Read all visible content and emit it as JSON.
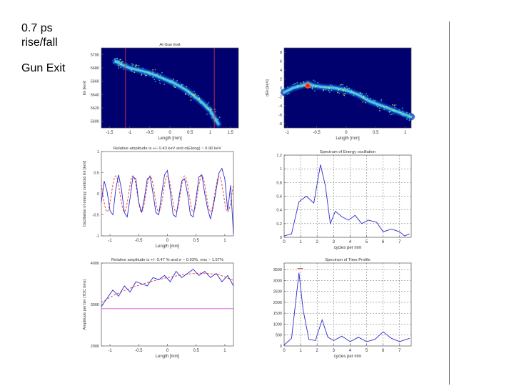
{
  "slide": {
    "heading_line1": "0.7 ps",
    "heading_line2": "rise/fall",
    "subheading": "Gun Exit"
  },
  "colors": {
    "blue": "#2b2bcc",
    "red": "#e23a3a",
    "magenta": "#d34fd3",
    "heatmap_bg": "#00006e",
    "divider": "#777777"
  },
  "chart_data": [
    {
      "type": "heatmap",
      "title": "At Gun Exit",
      "xlabel": "Length [mm]",
      "ylabel": "Ek [keV]",
      "xlim": [
        -1.7,
        1.7
      ],
      "ylim": [
        5590,
        5710
      ],
      "xticks": [
        -1.5,
        -1,
        -0.5,
        0,
        0.5,
        1,
        1.5
      ],
      "xtick_labels": [
        "-1.5",
        "-1",
        "-0.5",
        "0",
        "0.5",
        "1",
        "1.5"
      ],
      "yticks": [
        5600,
        5620,
        5640,
        5660,
        5680,
        5700
      ],
      "ytick_labels": [
        "5600",
        "5620",
        "5640",
        "5660",
        "5680",
        "5700"
      ],
      "vertical_markers": [
        -1.1,
        1.1
      ],
      "ridge": {
        "x": [
          -1.35,
          -1.2,
          -1.0,
          -0.8,
          -0.6,
          -0.4,
          -0.2,
          0,
          0.2,
          0.4,
          0.6,
          0.8,
          1.0,
          1.1,
          1.2
        ],
        "y": [
          5690,
          5685,
          5680,
          5677,
          5674,
          5670,
          5665,
          5660,
          5654,
          5647,
          5638,
          5628,
          5616,
          5606,
          5596
        ]
      }
    },
    {
      "type": "heatmap",
      "title": "",
      "xlabel": "Length [mm]",
      "ylabel": "dEk [keV]",
      "xlim": [
        -1.05,
        1.1
      ],
      "ylim": [
        -9,
        9
      ],
      "xticks": [
        -1,
        -0.5,
        0,
        0.5,
        1
      ],
      "xtick_labels": [
        "-1",
        "-0.5",
        "0",
        "0.5",
        "1"
      ],
      "yticks": [
        -8,
        -6,
        -4,
        -2,
        0,
        2,
        4,
        6,
        8
      ],
      "ytick_labels": [
        "-8",
        "-6",
        "-4",
        "-2",
        "0",
        "2",
        "4",
        "6",
        "8"
      ],
      "ridge": {
        "x": [
          -1.05,
          -0.9,
          -0.75,
          -0.65,
          -0.55,
          -0.4,
          -0.2,
          0,
          0.2,
          0.4,
          0.6,
          0.8,
          1.0,
          1.1
        ],
        "y": [
          -1,
          0,
          0.5,
          1,
          0.5,
          0.2,
          0,
          -0.5,
          -1.5,
          -3,
          -4,
          -5,
          -6,
          -6.5
        ]
      },
      "hotspot": {
        "x": -0.65,
        "y": 0.5
      }
    },
    {
      "type": "line",
      "title": "Relative amplitude is +/- 0.43 keV and σ(Elong) ~ 0.90 keV",
      "xlabel": "Length [mm]",
      "ylabel": "Oscillation of energy centroid Ek [keV]",
      "xlim": [
        -1.15,
        1.15
      ],
      "ylim": [
        -1,
        1
      ],
      "xticks": [
        -1,
        -0.5,
        0,
        0.5,
        1
      ],
      "xtick_labels": [
        "-1",
        "-0.5",
        "0",
        "0.5",
        "1"
      ],
      "yticks": [
        -1,
        -0.5,
        0,
        0.5,
        1
      ],
      "ytick_labels": [
        "-1",
        "-0.5",
        "0",
        "0.5",
        "1"
      ],
      "series": [
        {
          "color": "#2b2bcc",
          "style": "solid",
          "x": [
            -1.15,
            -1.1,
            -1.05,
            -1.0,
            -0.95,
            -0.9,
            -0.85,
            -0.8,
            -0.75,
            -0.7,
            -0.65,
            -0.6,
            -0.55,
            -0.5,
            -0.45,
            -0.4,
            -0.35,
            -0.3,
            -0.25,
            -0.2,
            -0.15,
            -0.1,
            -0.05,
            0,
            0.05,
            0.1,
            0.15,
            0.2,
            0.25,
            0.3,
            0.35,
            0.4,
            0.45,
            0.5,
            0.55,
            0.6,
            0.65,
            0.7,
            0.75,
            0.8,
            0.85,
            0.9,
            0.95,
            1.0,
            1.05,
            1.1,
            1.15
          ],
          "y": [
            -0.2,
            0.3,
            0.05,
            -0.4,
            -0.5,
            0.1,
            0.45,
            0.1,
            -0.45,
            -0.55,
            -0.1,
            0.4,
            0.35,
            -0.2,
            -0.45,
            -0.1,
            0.35,
            0.4,
            0.0,
            -0.45,
            -0.5,
            0.0,
            0.45,
            0.55,
            0.05,
            -0.5,
            -0.55,
            -0.1,
            0.3,
            0.35,
            0.0,
            -0.5,
            -0.55,
            -0.1,
            0.4,
            0.45,
            0.0,
            -0.35,
            -0.6,
            -0.3,
            0.1,
            0.5,
            0.6,
            0.35,
            -0.4,
            0.2,
            -0.95
          ]
        },
        {
          "color": "#e23a3a",
          "style": "dashed",
          "amplitude": 0.43,
          "period": 0.3,
          "x_range": [
            -1.15,
            1.15
          ]
        }
      ]
    },
    {
      "type": "line",
      "title": "Spectrum of Energy oscillation",
      "xlabel": "cycles per mm",
      "ylabel": "",
      "xlim": [
        0,
        7.7
      ],
      "ylim": [
        0,
        1.2
      ],
      "xticks": [
        0,
        1,
        2,
        3,
        4,
        5,
        6,
        7
      ],
      "xtick_labels": [
        "0",
        "1",
        "2",
        "3",
        "4",
        "5",
        "6",
        "7"
      ],
      "yticks": [
        0,
        0.2,
        0.4,
        0.6,
        0.8,
        1.0,
        1.2
      ],
      "ytick_labels": [
        "0",
        "0.2",
        "0.4",
        "0.6",
        "0.8",
        "1",
        "1.2"
      ],
      "grid": "dashed",
      "series": [
        {
          "color": "#2b2bcc",
          "x": [
            0,
            0.45,
            0.9,
            1.35,
            1.8,
            2.2,
            2.5,
            2.8,
            3.1,
            3.5,
            3.9,
            4.3,
            4.7,
            5.1,
            5.6,
            6.0,
            6.5,
            7.0,
            7.3,
            7.6
          ],
          "y": [
            0.02,
            0.05,
            0.52,
            0.6,
            0.5,
            1.06,
            0.75,
            0.2,
            0.38,
            0.3,
            0.25,
            0.32,
            0.2,
            0.25,
            0.22,
            0.08,
            0.12,
            0.08,
            0.02,
            0.05
          ]
        }
      ]
    },
    {
      "type": "line",
      "title": "Relative amplitude is +/- 0.47 % and σ ~ 0.93%, rms ~ 1.57%",
      "xlabel": "Length [mm]",
      "ylabel": "Amplitude per bin (7DC bins)",
      "xlim": [
        -1.15,
        1.15
      ],
      "ylim": [
        2000,
        4000
      ],
      "xticks": [
        -1,
        -0.5,
        0,
        0.5,
        1
      ],
      "xtick_labels": [
        "-1",
        "-0.5",
        "0",
        "0.5",
        "1"
      ],
      "yticks": [
        2000,
        3000,
        4000
      ],
      "ytick_labels": [
        "2000",
        "3000",
        "4000"
      ],
      "series": [
        {
          "color": "#2b2bcc",
          "x": [
            -1.15,
            -1.05,
            -0.95,
            -0.85,
            -0.75,
            -0.65,
            -0.55,
            -0.45,
            -0.35,
            -0.25,
            -0.15,
            -0.05,
            0.05,
            0.15,
            0.25,
            0.35,
            0.45,
            0.55,
            0.65,
            0.75,
            0.85,
            0.95,
            1.05,
            1.15
          ],
          "y": [
            2950,
            3150,
            3350,
            3200,
            3450,
            3300,
            3550,
            3500,
            3450,
            3650,
            3600,
            3700,
            3550,
            3800,
            3650,
            3750,
            3850,
            3700,
            3800,
            3650,
            3750,
            3550,
            3700,
            3450
          ]
        },
        {
          "color": "#e23a3a",
          "style": "dashed",
          "x": [
            -1.15,
            -0.9,
            -0.6,
            -0.3,
            0,
            0.3,
            0.6,
            0.9,
            1.15
          ],
          "y": [
            3050,
            3250,
            3420,
            3550,
            3650,
            3730,
            3760,
            3720,
            3580
          ]
        },
        {
          "color": "#d34fd3",
          "x": [
            -1.15,
            1.15
          ],
          "y": [
            2900,
            2900
          ]
        }
      ]
    },
    {
      "type": "line",
      "title": "Spectrum of Time Profile",
      "xlabel": "cycles per mm",
      "ylabel": "",
      "xlim": [
        0,
        7.7
      ],
      "ylim": [
        0,
        3800
      ],
      "xticks": [
        0,
        1,
        2,
        3,
        4,
        5,
        6,
        7
      ],
      "xtick_labels": [
        "0",
        "1",
        "2",
        "3",
        "4",
        "5",
        "6",
        "7"
      ],
      "yticks": [
        0,
        500,
        1000,
        1500,
        2000,
        2500,
        3000,
        3500
      ],
      "ytick_labels": [
        "0",
        "500",
        "1000",
        "1500",
        "2000",
        "2500",
        "3000",
        "3500"
      ],
      "grid": "dashed",
      "series": [
        {
          "color": "#2b2bcc",
          "x": [
            0,
            0.45,
            0.9,
            1.15,
            1.5,
            1.9,
            2.3,
            2.65,
            3.0,
            3.5,
            4.0,
            4.5,
            5.0,
            5.5,
            6.0,
            6.5,
            7.0,
            7.6
          ],
          "y": [
            50,
            350,
            3350,
            1650,
            300,
            250,
            1200,
            400,
            250,
            450,
            200,
            400,
            200,
            300,
            650,
            350,
            200,
            350
          ]
        },
        {
          "color": "#e23a3a",
          "x": [
            0.8,
            1.15
          ],
          "y": [
            3550,
            3550
          ]
        }
      ]
    }
  ]
}
